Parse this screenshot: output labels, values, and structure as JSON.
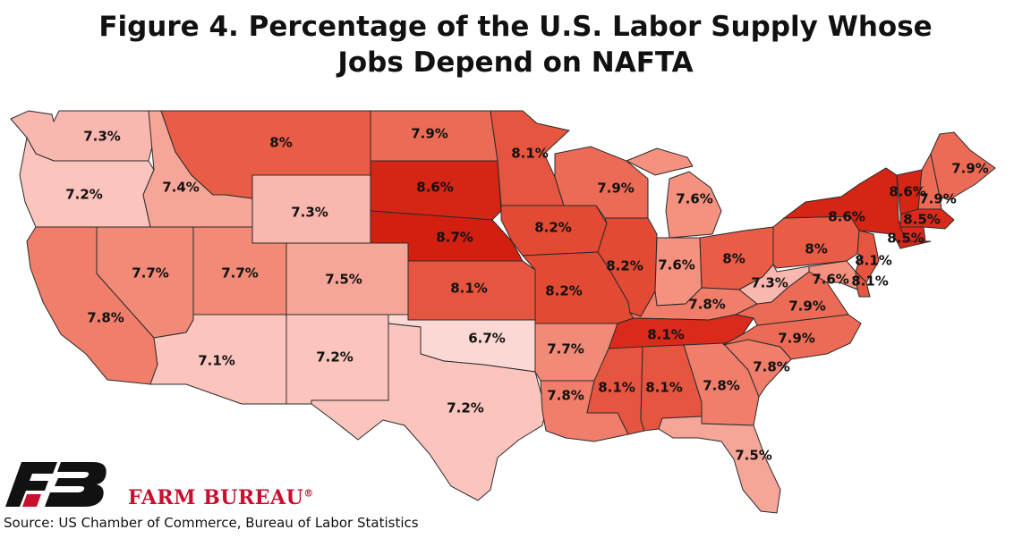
{
  "title": {
    "line1": "Figure 4. Percentage of the U.S. Labor Supply Whose",
    "line2": "Jobs Depend on NAFTA"
  },
  "brand": {
    "name": "FARM BUREAU",
    "mark": "®"
  },
  "source": "Source: US Chamber of Commerce, Bureau of Labor Statistics",
  "colors": {
    "c67": "#fcd8d4",
    "c71": "#fbc4bd",
    "c72": "#fbc4bd",
    "c73": "#f9b8af",
    "c74": "#f6a698",
    "c75": "#f6a698",
    "c76": "#f4917f",
    "c77": "#f28a78",
    "c78": "#f07e6b",
    "c79": "#ec6b56",
    "c80": "#e95c45",
    "c81": "#e6553f",
    "c82": "#e24a33",
    "c85": "#d92a1c",
    "c86": "#d42515",
    "c87": "#d21f10"
  },
  "chart_data": {
    "type": "map",
    "title": "Figure 4. Percentage of the U.S. Labor Supply Whose Jobs Depend on NAFTA",
    "unit": "%",
    "states": [
      {
        "label": "7.3%",
        "value": 7.3
      },
      {
        "label": "7.2%",
        "value": 7.2
      },
      {
        "label": "7.8%",
        "value": 7.8
      },
      {
        "label": "7.4%",
        "value": 7.4
      },
      {
        "label": "7.7%",
        "value": 7.7
      },
      {
        "label": "8%",
        "value": 8.0
      },
      {
        "label": "7.3%",
        "value": 7.3
      },
      {
        "label": "7.7%",
        "value": 7.7
      },
      {
        "label": "7.1%",
        "value": 7.1
      },
      {
        "label": "7.5%",
        "value": 7.5
      },
      {
        "label": "7.2%",
        "value": 7.2
      },
      {
        "label": "7.9%",
        "value": 7.9
      },
      {
        "label": "8.6%",
        "value": 8.6
      },
      {
        "label": "8.7%",
        "value": 8.7
      },
      {
        "label": "8.1%",
        "value": 8.1
      },
      {
        "label": "6.7%",
        "value": 6.7
      },
      {
        "label": "7.2%",
        "value": 7.2
      },
      {
        "label": "8.1%",
        "value": 8.1
      },
      {
        "label": "8.2%",
        "value": 8.2
      },
      {
        "label": "8.2%",
        "value": 8.2
      },
      {
        "label": "7.7%",
        "value": 7.7
      },
      {
        "label": "7.8%",
        "value": 7.8
      },
      {
        "label": "7.9%",
        "value": 7.9
      },
      {
        "label": "8.2%",
        "value": 8.2
      },
      {
        "label": "7.6%",
        "value": 7.6
      },
      {
        "label": "7.6%",
        "value": 7.6
      },
      {
        "label": "8%",
        "value": 8.0
      },
      {
        "label": "7.8%",
        "value": 7.8
      },
      {
        "label": "8.1%",
        "value": 8.1
      },
      {
        "label": "8.1%",
        "value": 8.1
      },
      {
        "label": "8.1%",
        "value": 8.1
      },
      {
        "label": "7.8%",
        "value": 7.8
      },
      {
        "label": "7.8%",
        "value": 7.8
      },
      {
        "label": "7.5%",
        "value": 7.5
      },
      {
        "label": "7.9%",
        "value": 7.9
      },
      {
        "label": "7.9%",
        "value": 7.9
      },
      {
        "label": "7.3%",
        "value": 7.3
      },
      {
        "label": "8%",
        "value": 8.0
      },
      {
        "label": "8.6%",
        "value": 8.6
      },
      {
        "label": "8.1%",
        "value": 8.1
      },
      {
        "label": "7.6%",
        "value": 7.6
      },
      {
        "label": "8.1%",
        "value": 8.1
      },
      {
        "label": "8.6%",
        "value": 8.6
      },
      {
        "label": "7.9%",
        "value": 7.9
      },
      {
        "label": "8.5%",
        "value": 8.5
      },
      {
        "label": "8.5%",
        "value": 8.5
      },
      {
        "label": "7.9%",
        "value": 7.9
      }
    ]
  }
}
